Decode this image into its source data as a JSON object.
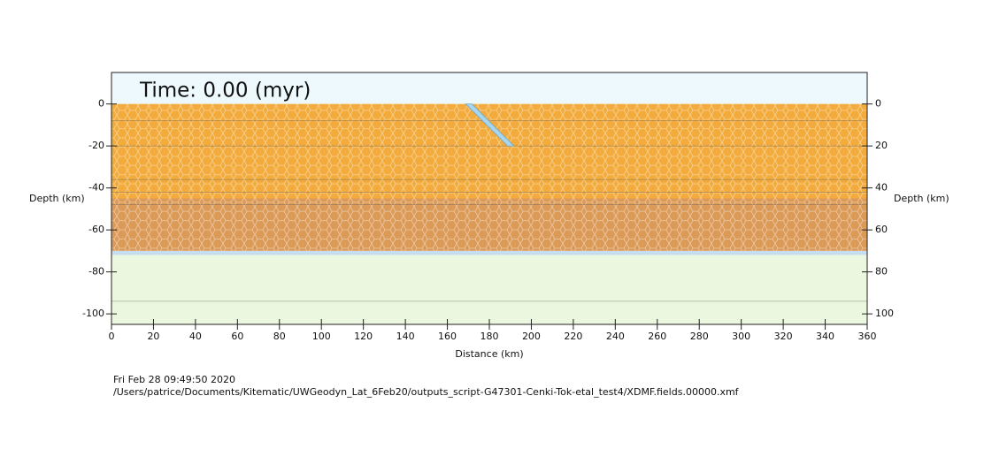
{
  "chart_data": {
    "type": "section",
    "title": "Time: 0.00 (myr)",
    "ylabel": "Depth (km)",
    "y2label": "Depth (km)",
    "xlabel": "Distance (km)",
    "footer": [
      "Fri Feb 28 09:49:50 2020",
      "/Users/patrice/Documents/Kitematic/UWGeodyn_Lat_6Feb20/outputs_script-G47301-Cenki-Tok-etal_test4/XDMF.fields.00000.xmf"
    ],
    "xlim": [
      0,
      360
    ],
    "xticks": [
      0,
      20,
      40,
      60,
      80,
      100,
      120,
      140,
      160,
      180,
      200,
      220,
      240,
      260,
      280,
      300,
      320,
      340,
      360
    ],
    "ylim": [
      -105,
      15
    ],
    "yticks": [
      0,
      -20,
      -40,
      -60,
      -80,
      -100
    ],
    "y2lim": [
      105,
      -15
    ],
    "y2ticks": [
      0,
      20,
      40,
      60,
      80,
      100
    ],
    "regions": [
      {
        "top": 15,
        "bottom": 0,
        "color": "#eef9fd"
      },
      {
        "top": 0,
        "bottom": -45,
        "color": "#f2ab3c",
        "texture": "hex"
      },
      {
        "top": -45,
        "bottom": -70,
        "color": "#dc9a58",
        "texture": "hex"
      },
      {
        "top": -70,
        "bottom": -72,
        "color": "#c6dcef"
      },
      {
        "top": -72,
        "bottom": -105,
        "color": "#ebf8df"
      }
    ],
    "boundaries": [
      -8,
      -20,
      -36,
      -42,
      -48,
      -94
    ],
    "weak_zone": {
      "x": [
        170,
        190
      ],
      "y": [
        0,
        -20
      ],
      "color": "#a9d6ec"
    }
  }
}
